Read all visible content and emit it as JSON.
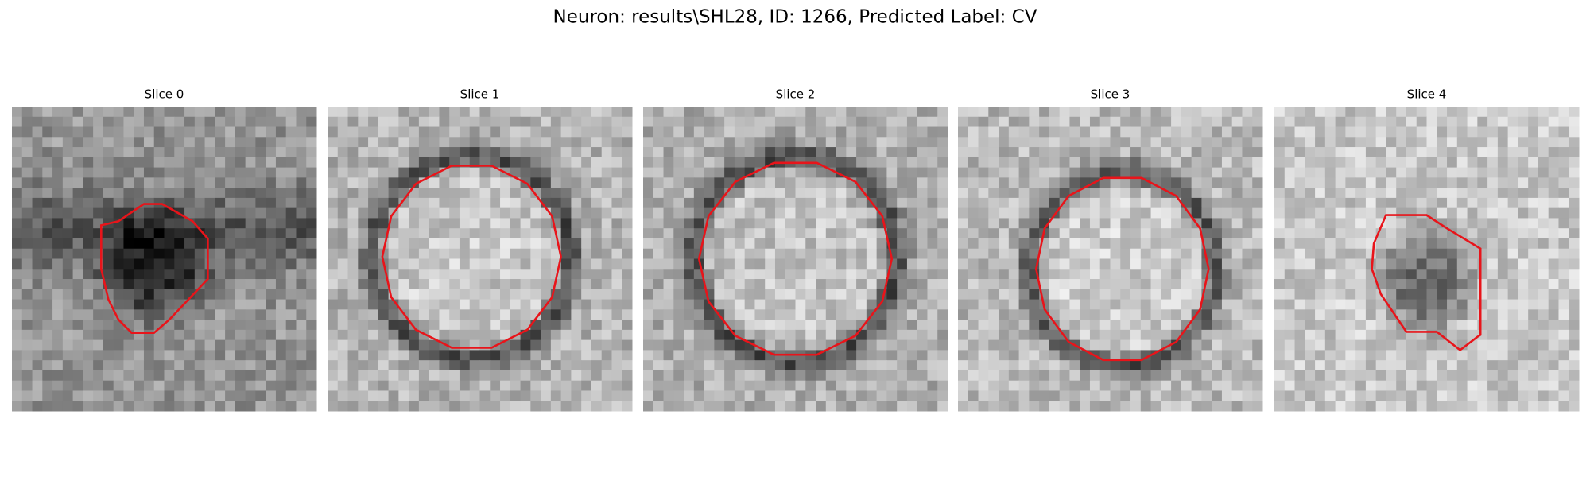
{
  "title": "Neuron: results\\SHL28, ID: 1266, Predicted Label: CV",
  "panels": [
    {
      "title": "Slice 0"
    },
    {
      "title": "Slice 1"
    },
    {
      "title": "Slice 2"
    },
    {
      "title": "Slice 3"
    },
    {
      "title": "Slice 4"
    }
  ]
}
